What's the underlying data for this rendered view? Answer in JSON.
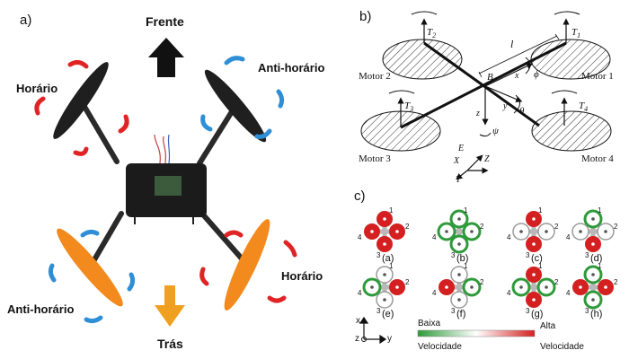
{
  "panel_a": {
    "label": "a)",
    "front": "Frente",
    "back": "Trás",
    "cw_top": "Horário",
    "ccw_top": "Anti-horário",
    "ccw_bottom": "Anti-horário",
    "cw_bottom": "Horário",
    "colors": {
      "rear_prop": "#f28a1e",
      "front_prop": "#1f1f1f",
      "arrow_cw": "#e02424",
      "arrow_ccw": "#2f8fd6",
      "back_arrow": "#f0a020"
    }
  },
  "panel_b": {
    "label": "b)",
    "motor1": "Motor 1",
    "motor2": "Motor 2",
    "motor3": "Motor 3",
    "motor4": "Motor 4",
    "t1": "T",
    "t1_sub": "1",
    "t2": "T",
    "t2_sub": "2",
    "t3": "T",
    "t3_sub": "3",
    "t4": "T",
    "t4_sub": "4",
    "length": "l",
    "body": "B",
    "bx": "x",
    "by": "y",
    "bz": "z",
    "phi": "ϕ",
    "theta": "θ",
    "psi": "ψ",
    "earth": "E",
    "ex": "X",
    "ey": "Y",
    "ez": "Z"
  },
  "panel_c": {
    "label": "c)",
    "cases": [
      {
        "label": "(a)",
        "n1": "1",
        "n2": "2",
        "n3": "3",
        "n4": "4",
        "rotors": [
          "high",
          "high",
          "high",
          "high"
        ]
      },
      {
        "label": "(b)",
        "n1": "1",
        "n2": "2",
        "n3": "3",
        "n4": "4",
        "rotors": [
          "low",
          "low",
          "low",
          "low"
        ]
      },
      {
        "label": "(c)",
        "n1": "1",
        "n2": "2",
        "n3": "3",
        "n4": "4",
        "rotors": [
          "high",
          "off",
          "high",
          "off"
        ]
      },
      {
        "label": "(d)",
        "n1": "1",
        "n2": "2",
        "n3": "3",
        "n4": "4",
        "rotors": [
          "low",
          "off",
          "high",
          "off"
        ]
      },
      {
        "label": "(e)",
        "n1": "1",
        "n2": "2",
        "n3": "3",
        "n4": "4",
        "rotors": [
          "off",
          "high",
          "off",
          "low"
        ]
      },
      {
        "label": "(f)",
        "n1": "1",
        "n2": "2",
        "n3": "3",
        "n4": "4",
        "rotors": [
          "off",
          "low",
          "off",
          "high"
        ]
      },
      {
        "label": "(g)",
        "n1": "1",
        "n2": "2",
        "n3": "3",
        "n4": "4",
        "rotors": [
          "high",
          "low",
          "high",
          "low"
        ]
      },
      {
        "label": "(h)",
        "n1": "1",
        "n2": "2",
        "n3": "3",
        "n4": "4",
        "rotors": [
          "low",
          "high",
          "low",
          "high"
        ]
      }
    ],
    "axis_x": "x",
    "axis_y": "y",
    "axis_z": "z",
    "low_l1": "Baixa",
    "low_l2": "Velocidade",
    "high_l1": "Alta",
    "high_l2": "Velocidade",
    "colors": {
      "high": "#d42020",
      "low": "#2e9a3a",
      "off": "#9a9a9a",
      "hub": "#b8b8b8"
    }
  }
}
